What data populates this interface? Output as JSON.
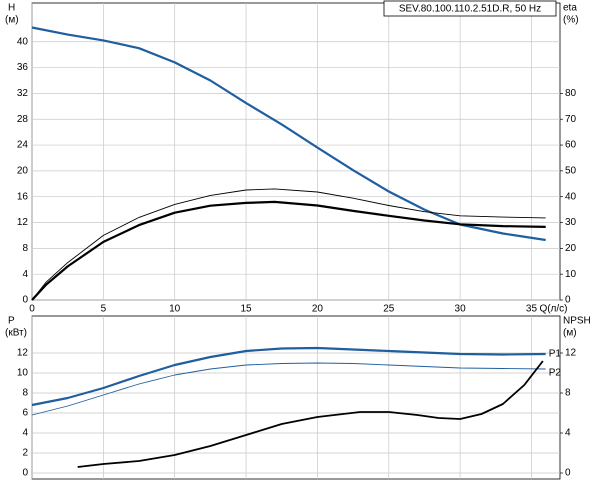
{
  "chart_data": [
    {
      "type": "line",
      "title": "SEV.80.100.110.2.51D.R, 50 Hz",
      "ylabel": "H",
      "yunit": "(м)",
      "y2label": "eta",
      "y2unit": "(%)",
      "xlabel": "Q(л/с)",
      "xlim": [
        0,
        37
      ],
      "xticks": [
        0,
        5,
        10,
        15,
        20,
        25,
        30,
        35
      ],
      "ylim": [
        0,
        46
      ],
      "yticks": [
        0,
        4,
        8,
        12,
        16,
        20,
        24,
        28,
        32,
        36,
        40
      ],
      "y2lim": [
        0,
        115
      ],
      "y2ticks": [
        0,
        10,
        20,
        30,
        40,
        50,
        60,
        70,
        80
      ],
      "grid": true,
      "series": [
        {
          "color": "#1f5f9f",
          "width": 2.2,
          "x": [
            0,
            2.5,
            5,
            7.5,
            10,
            12.5,
            15,
            17.5,
            20,
            22.5,
            25,
            27.5,
            30,
            33,
            36
          ],
          "values": [
            42.2,
            41.1,
            40.2,
            39,
            36.8,
            34,
            30.5,
            27.2,
            23.6,
            20.1,
            16.8,
            14,
            11.7,
            10.3,
            9.3
          ]
        },
        {
          "color": "#000000",
          "width": 2.2,
          "axis": "y2",
          "x": [
            0,
            1,
            2.5,
            5,
            7.5,
            10,
            12.5,
            15,
            17,
            20,
            22.5,
            25,
            27.5,
            30,
            33,
            36
          ],
          "values": [
            0,
            6,
            13,
            22.5,
            29,
            33.8,
            36.5,
            37.6,
            38,
            36.6,
            34.5,
            32.6,
            30.8,
            29.3,
            28.6,
            28.3
          ]
        },
        {
          "color": "#000000",
          "width": 0.9,
          "axis": "y2",
          "x": [
            0,
            1,
            2.5,
            5,
            7.5,
            10,
            12.5,
            15,
            17,
            20,
            22.5,
            25,
            27.5,
            30,
            33,
            36
          ],
          "values": [
            0,
            7,
            14.5,
            25,
            32,
            37,
            40.5,
            42.6,
            43,
            41.8,
            39.4,
            36.6,
            34.2,
            32.6,
            32.1,
            31.8
          ]
        }
      ]
    },
    {
      "type": "line",
      "ylabel": "P",
      "yunit": "(кВт)",
      "y2label": "NPSH",
      "y2unit": "(м)",
      "xlim": [
        0,
        37
      ],
      "xticks": [
        0,
        5,
        10,
        15,
        20,
        25,
        30,
        35
      ],
      "ylim": [
        -0.6,
        15.7
      ],
      "yticks": [
        0,
        2,
        4,
        6,
        8,
        10,
        12
      ],
      "y2lim": [
        -0.6,
        15.7
      ],
      "y2ticks": [
        0,
        4,
        8,
        12
      ],
      "grid": true,
      "series": [
        {
          "name": "P1",
          "color": "#1f5f9f",
          "width": 2.2,
          "x": [
            0,
            2.5,
            5,
            7.5,
            10,
            12.5,
            15,
            17.5,
            20,
            22.5,
            25,
            27.5,
            30,
            33,
            36
          ],
          "values": [
            6.8,
            7.5,
            8.5,
            9.7,
            10.8,
            11.6,
            12.2,
            12.45,
            12.5,
            12.35,
            12.2,
            12.05,
            11.9,
            11.85,
            11.9
          ]
        },
        {
          "name": "P2",
          "color": "#1f5f9f",
          "width": 0.9,
          "x": [
            0,
            2.5,
            5,
            7.5,
            10,
            12.5,
            15,
            17.5,
            20,
            22.5,
            25,
            27.5,
            30,
            33,
            36
          ],
          "values": [
            5.8,
            6.7,
            7.8,
            8.9,
            9.8,
            10.4,
            10.8,
            10.95,
            11,
            10.95,
            10.8,
            10.65,
            10.5,
            10.45,
            10.4
          ]
        },
        {
          "color": "#000000",
          "width": 1.8,
          "axis": "y2",
          "x": [
            3.2,
            5,
            7.5,
            10,
            12.5,
            15,
            17.5,
            20,
            23,
            25,
            27,
            28.5,
            30,
            31.5,
            33,
            34.5,
            35.8
          ],
          "values": [
            0.6,
            0.9,
            1.2,
            1.8,
            2.7,
            3.8,
            4.9,
            5.6,
            6.1,
            6.1,
            5.8,
            5.5,
            5.4,
            5.9,
            6.9,
            8.8,
            11.2
          ]
        }
      ]
    }
  ]
}
